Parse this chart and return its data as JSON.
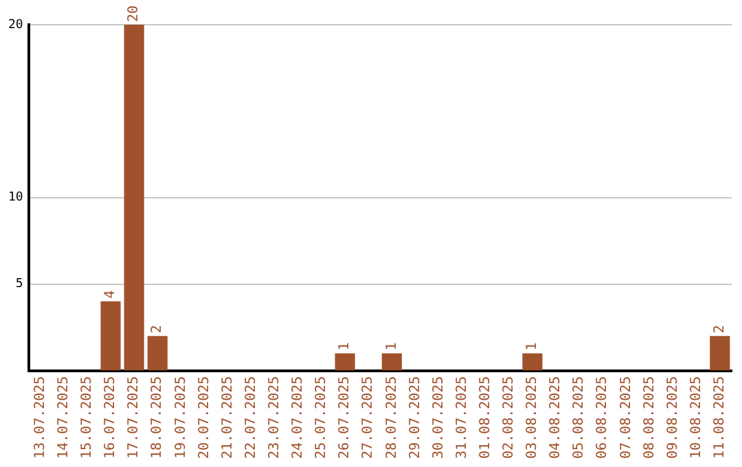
{
  "chart_data": {
    "type": "bar",
    "categories": [
      "13.07.2025",
      "14.07.2025",
      "15.07.2025",
      "16.07.2025",
      "17.07.2025",
      "18.07.2025",
      "19.07.2025",
      "20.07.2025",
      "21.07.2025",
      "22.07.2025",
      "23.07.2025",
      "24.07.2025",
      "25.07.2025",
      "26.07.2025",
      "27.07.2025",
      "28.07.2025",
      "29.07.2025",
      "30.07.2025",
      "31.07.2025",
      "01.08.2025",
      "02.08.2025",
      "03.08.2025",
      "04.08.2025",
      "05.08.2025",
      "06.08.2025",
      "07.08.2025",
      "08.08.2025",
      "09.08.2025",
      "10.08.2025",
      "11.08.2025"
    ],
    "values": [
      0,
      0,
      0,
      4,
      20,
      2,
      0,
      0,
      0,
      0,
      0,
      0,
      0,
      1,
      0,
      1,
      0,
      0,
      0,
      0,
      0,
      1,
      0,
      0,
      0,
      0,
      0,
      0,
      0,
      2
    ],
    "value_labels": [
      null,
      null,
      null,
      "4",
      "20",
      "2",
      null,
      null,
      null,
      null,
      null,
      null,
      null,
      "1",
      null,
      "1",
      null,
      null,
      null,
      null,
      null,
      "1",
      null,
      null,
      null,
      null,
      null,
      null,
      null,
      "2"
    ],
    "color": "#a0522d",
    "ylim": [
      0,
      20
    ],
    "yticks": [
      5,
      10,
      20
    ],
    "grid": "y",
    "legend": false
  }
}
